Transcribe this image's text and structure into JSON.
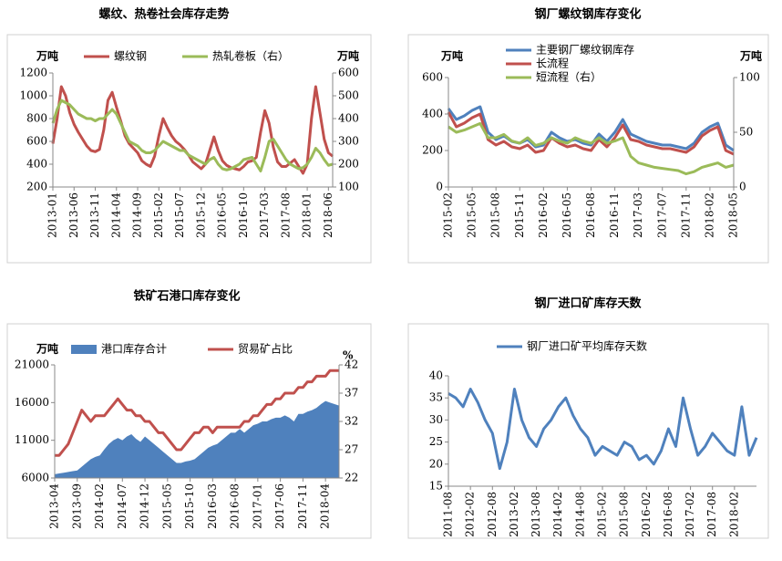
{
  "chart_data": [
    {
      "type": "line",
      "title": "螺纹、热卷社会库存走势",
      "y_unit": "万吨",
      "y2_unit": "万吨",
      "categories": [
        "2013-01",
        null,
        null,
        null,
        null,
        "2013-06",
        null,
        null,
        null,
        null,
        "2013-11",
        null,
        null,
        null,
        null,
        "2014-04",
        null,
        null,
        null,
        null,
        "2014-09",
        null,
        null,
        null,
        null,
        "2015-02",
        null,
        null,
        null,
        null,
        "2015-07",
        null,
        null,
        null,
        null,
        "2015-12",
        null,
        null,
        null,
        null,
        "2016-05",
        null,
        null,
        null,
        null,
        "2016-10",
        null,
        null,
        null,
        null,
        "2017-03",
        null,
        null,
        null,
        null,
        "2017-08",
        null,
        null,
        null,
        null,
        "2018-01",
        null,
        null,
        null,
        null,
        "2018-06",
        null
      ],
      "ylim": [
        200,
        1200
      ],
      "yticks": [
        200,
        400,
        600,
        800,
        1000,
        1200
      ],
      "y2lim": [
        100,
        600
      ],
      "y2ticks": [
        100,
        200,
        300,
        400,
        500,
        600
      ],
      "series": [
        {
          "name": "螺纹钢",
          "color": "#c0504d",
          "values": [
            580,
            800,
            1080,
            1000,
            850,
            750,
            680,
            620,
            560,
            520,
            510,
            530,
            700,
            960,
            1030,
            900,
            780,
            650,
            580,
            540,
            500,
            430,
            400,
            380,
            470,
            650,
            800,
            720,
            650,
            600,
            570,
            530,
            480,
            420,
            390,
            360,
            400,
            520,
            640,
            520,
            430,
            390,
            370,
            360,
            350,
            380,
            420,
            430,
            460,
            680,
            870,
            760,
            550,
            420,
            380,
            380,
            410,
            440,
            380,
            320,
            400,
            800,
            1080,
            850,
            620,
            500,
            470
          ]
        },
        {
          "name": "热轧卷板（右）",
          "color": "#9bbb59",
          "axis": "y2",
          "values": [
            380,
            440,
            480,
            470,
            460,
            440,
            420,
            410,
            400,
            400,
            390,
            400,
            400,
            420,
            440,
            420,
            380,
            340,
            300,
            290,
            280,
            260,
            250,
            250,
            260,
            280,
            300,
            290,
            280,
            270,
            260,
            260,
            240,
            230,
            220,
            210,
            200,
            220,
            230,
            200,
            180,
            175,
            180,
            190,
            200,
            220,
            225,
            230,
            200,
            170,
            230,
            300,
            310,
            280,
            250,
            220,
            200,
            190,
            180,
            185,
            200,
            230,
            270,
            250,
            220,
            195,
            200
          ]
        }
      ]
    },
    {
      "type": "line",
      "title": "钢厂螺纹钢库存变化",
      "y_unit": "万吨",
      "y2_unit": "万吨",
      "categories": [
        "2015-02",
        null,
        null,
        "2015-05",
        null,
        null,
        "2015-08",
        null,
        null,
        "2015-11",
        null,
        null,
        "2016-02",
        null,
        null,
        "2016-05",
        null,
        null,
        "2016-08",
        null,
        null,
        "2016-11",
        null,
        null,
        "2017-03",
        null,
        null,
        "2017-07",
        null,
        null,
        "2017-11",
        null,
        null,
        "2018-02",
        null,
        null,
        "2018-05"
      ],
      "ylim": [
        0,
        600
      ],
      "yticks": [
        0,
        200,
        400,
        600
      ],
      "y2lim": [
        0,
        100
      ],
      "y2ticks": [
        0,
        50,
        100
      ],
      "series": [
        {
          "name": "主要钢厂螺纹钢库存",
          "color": "#4f81bd",
          "values": [
            430,
            370,
            390,
            420,
            440,
            300,
            260,
            280,
            250,
            240,
            260,
            220,
            230,
            300,
            270,
            250,
            260,
            240,
            230,
            290,
            250,
            300,
            370,
            290,
            270,
            250,
            240,
            230,
            230,
            220,
            210,
            240,
            300,
            330,
            350,
            230,
            200
          ]
        },
        {
          "name": "长流程",
          "color": "#c0504d",
          "values": [
            410,
            330,
            350,
            380,
            400,
            260,
            230,
            250,
            220,
            210,
            230,
            190,
            200,
            270,
            240,
            220,
            230,
            210,
            200,
            260,
            220,
            270,
            340,
            260,
            250,
            230,
            220,
            210,
            210,
            200,
            190,
            220,
            280,
            310,
            330,
            200,
            180
          ]
        },
        {
          "name": "短流程（右）",
          "color": "#9bbb59",
          "axis": "y2",
          "values": [
            55,
            50,
            52,
            55,
            58,
            45,
            45,
            48,
            42,
            40,
            45,
            38,
            40,
            45,
            42,
            40,
            45,
            42,
            40,
            45,
            40,
            42,
            45,
            28,
            22,
            20,
            18,
            17,
            16,
            15,
            12,
            14,
            18,
            20,
            22,
            18,
            20
          ]
        }
      ]
    },
    {
      "type": "combo",
      "title": "铁矿石港口库存变化",
      "y_unit": "万吨",
      "y2_unit": "%",
      "categories": [
        "2013-04",
        null,
        null,
        null,
        null,
        "2013-09",
        null,
        null,
        null,
        null,
        "2014-02",
        null,
        null,
        null,
        null,
        "2014-07",
        null,
        null,
        null,
        null,
        "2014-12",
        null,
        null,
        null,
        null,
        "2015-05",
        null,
        null,
        null,
        null,
        "2015-10",
        null,
        null,
        null,
        null,
        "2016-03",
        null,
        null,
        null,
        null,
        "2016-08",
        null,
        null,
        null,
        null,
        "2017-01",
        null,
        null,
        null,
        null,
        "2017-06",
        null,
        null,
        null,
        null,
        "2017-11",
        null,
        null,
        null,
        null,
        "2018-04",
        null,
        null,
        null
      ],
      "ylim": [
        6000,
        21000
      ],
      "yticks": [
        6000,
        11000,
        16000,
        21000
      ],
      "y2lim": [
        22,
        42
      ],
      "y2ticks": [
        22,
        27,
        32,
        37,
        42
      ],
      "series": [
        {
          "name": "港口库存合计",
          "color": "#4f81bd",
          "type": "area",
          "values": [
            6500,
            6600,
            6700,
            6800,
            6900,
            7000,
            7500,
            8000,
            8500,
            8800,
            9000,
            9800,
            10500,
            11000,
            11300,
            11000,
            11500,
            11800,
            11200,
            10800,
            11500,
            11000,
            10500,
            10000,
            9500,
            9000,
            8500,
            8000,
            8000,
            8200,
            8300,
            8500,
            9000,
            9500,
            10000,
            10300,
            10500,
            11000,
            11500,
            12000,
            12000,
            12500,
            12000,
            12500,
            13000,
            13200,
            13500,
            13500,
            13800,
            14000,
            14000,
            14300,
            14000,
            13500,
            14500,
            14500,
            14800,
            15000,
            15300,
            15800,
            16200,
            16000,
            15800,
            15600
          ]
        },
        {
          "name": "贸易矿占比",
          "color": "#c0504d",
          "axis": "y2",
          "values": [
            26,
            26,
            27,
            28,
            30,
            32,
            34,
            33,
            32,
            33,
            33,
            33,
            34,
            35,
            36,
            35,
            34,
            34,
            33,
            33,
            32,
            32,
            31,
            30,
            30,
            29,
            28,
            27,
            27,
            28,
            29,
            30,
            30,
            31,
            31,
            30,
            31,
            31,
            31,
            31,
            31,
            31,
            32,
            32,
            33,
            33,
            34,
            35,
            35,
            36,
            36,
            37,
            37,
            37,
            38,
            38,
            39,
            39,
            40,
            40,
            40,
            41,
            41,
            41
          ]
        }
      ]
    },
    {
      "type": "line",
      "title": "钢厂进口矿库存天数",
      "categories": [
        "2011-08",
        null,
        null,
        "2012-02",
        null,
        null,
        "2012-08",
        null,
        null,
        "2013-02",
        null,
        null,
        "2013-08",
        null,
        null,
        "2014-02",
        null,
        null,
        "2014-08",
        null,
        null,
        "2015-02",
        null,
        null,
        "2015-08",
        null,
        null,
        "2016-02",
        null,
        null,
        "2016-08",
        null,
        null,
        "2017-02",
        null,
        null,
        "2017-08",
        null,
        null,
        "2018-02",
        null,
        null,
        null
      ],
      "ylim": [
        15,
        40
      ],
      "yticks": [
        15,
        20,
        25,
        30,
        35,
        40
      ],
      "series": [
        {
          "name": "钢厂进口矿平均库存天数",
          "color": "#4f81bd",
          "values": [
            36,
            35,
            33,
            37,
            34,
            30,
            27,
            19,
            25,
            37,
            30,
            26,
            24,
            28,
            30,
            33,
            35,
            31,
            28,
            26,
            22,
            24,
            23,
            22,
            25,
            24,
            21,
            22,
            20,
            23,
            28,
            24,
            35,
            28,
            22,
            24,
            27,
            25,
            23,
            22,
            33,
            22,
            26
          ]
        }
      ]
    }
  ]
}
